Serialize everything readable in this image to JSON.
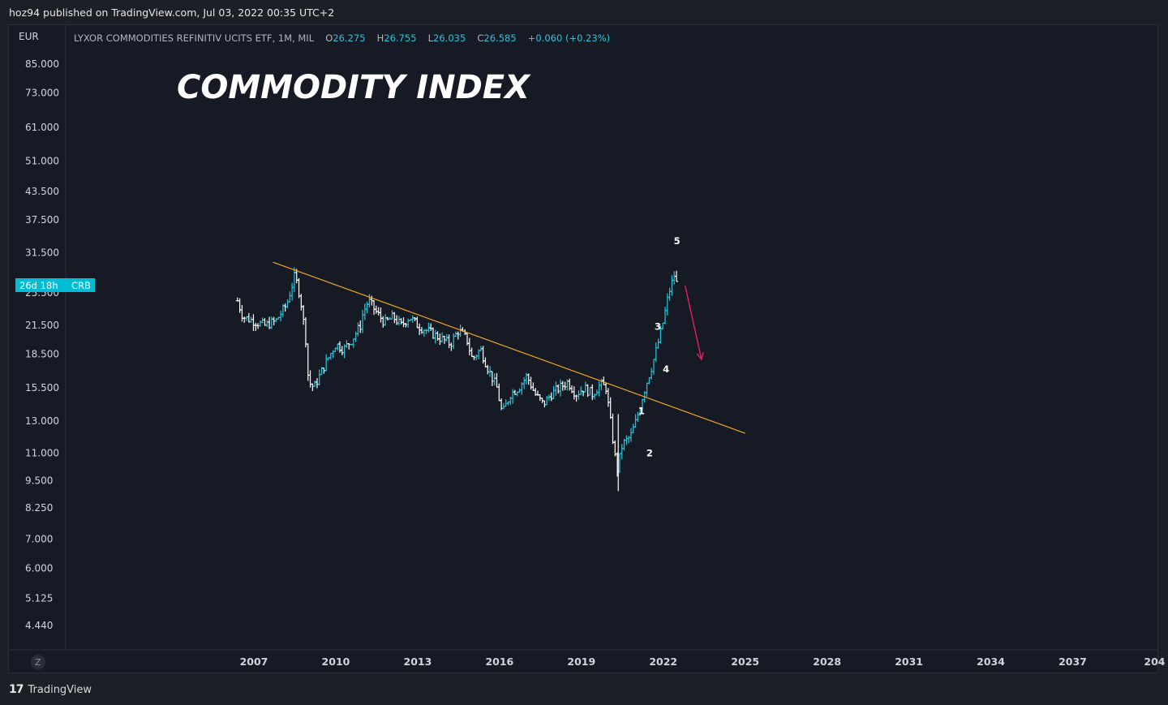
{
  "header": {
    "published_text": "hoz94 published on TradingView.com, Jul 03, 2022 00:35 UTC+2"
  },
  "legend": {
    "currency": "EUR",
    "symbol": "LYXOR COMMODITIES REFINITIV UCITS ETF, 1M, MIL",
    "open_label": "O",
    "open": "26.275",
    "high_label": "H",
    "high": "26.755",
    "low_label": "L",
    "low": "26.035",
    "close_label": "C",
    "close": "26.585",
    "change": "+0.060 (+0.23%)"
  },
  "badges": {
    "countdown": "26d 18h",
    "ticker": "CRB"
  },
  "axis_corner": "Z",
  "footer": {
    "brand": "TradingView"
  },
  "colors": {
    "background": "#161a25",
    "up_bar": "#26c6da",
    "down_bar": "#ffffff",
    "trendline": "#f5a623",
    "arrow": "#e91e63",
    "badge": "#00bcd4"
  },
  "chart_data": {
    "type": "line",
    "title": "COMMODITY INDEX",
    "scale": "log",
    "ylim": [
      4.0,
      95.0
    ],
    "y_ticks": [
      "85.000",
      "73.000",
      "61.000",
      "51.000",
      "43.500",
      "37.500",
      "31.500",
      "25.500",
      "21.500",
      "18.500",
      "15.500",
      "13.000",
      "11.000",
      "9.500",
      "8.250",
      "7.000",
      "6.000",
      "5.125",
      "4.440"
    ],
    "x_ticks": [
      "2007",
      "2010",
      "2013",
      "2016",
      "2019",
      "2022",
      "2025",
      "2028",
      "2031",
      "2034",
      "2037",
      "204"
    ],
    "series": [
      {
        "values": [
          [
            2006.4,
            24.5
          ],
          [
            2006.6,
            22.5
          ],
          [
            2007.0,
            22.0
          ],
          [
            2007.4,
            21.5
          ],
          [
            2007.8,
            22.0
          ],
          [
            2008.2,
            24.0
          ],
          [
            2008.5,
            28.0
          ],
          [
            2008.7,
            25.0
          ],
          [
            2008.9,
            20.0
          ],
          [
            2009.0,
            16.0
          ],
          [
            2009.2,
            15.5
          ],
          [
            2009.5,
            17.0
          ],
          [
            2009.8,
            18.5
          ],
          [
            2010.0,
            19.5
          ],
          [
            2010.3,
            19.0
          ],
          [
            2010.6,
            20.0
          ],
          [
            2010.9,
            21.5
          ],
          [
            2011.0,
            23.0
          ],
          [
            2011.2,
            24.5
          ],
          [
            2011.5,
            23.0
          ],
          [
            2011.8,
            21.8
          ],
          [
            2012.1,
            22.5
          ],
          [
            2012.4,
            21.5
          ],
          [
            2012.7,
            22.5
          ],
          [
            2013.0,
            21.5
          ],
          [
            2013.3,
            21.0
          ],
          [
            2013.6,
            20.5
          ],
          [
            2013.9,
            20.0
          ],
          [
            2014.2,
            19.5
          ],
          [
            2014.5,
            21.0
          ],
          [
            2014.8,
            20.0
          ],
          [
            2015.0,
            18.0
          ],
          [
            2015.3,
            19.0
          ],
          [
            2015.6,
            17.0
          ],
          [
            2015.9,
            15.5
          ],
          [
            2016.1,
            13.5
          ],
          [
            2016.4,
            15.0
          ],
          [
            2016.7,
            15.5
          ],
          [
            2017.0,
            16.5
          ],
          [
            2017.3,
            15.0
          ],
          [
            2017.6,
            14.2
          ],
          [
            2017.9,
            15.0
          ],
          [
            2018.2,
            15.5
          ],
          [
            2018.5,
            16.0
          ],
          [
            2018.8,
            15.0
          ],
          [
            2019.1,
            15.5
          ],
          [
            2019.4,
            15.0
          ],
          [
            2019.7,
            15.8
          ],
          [
            2019.9,
            15.5
          ],
          [
            2020.1,
            12.5
          ],
          [
            2020.3,
            10.0
          ],
          [
            2020.5,
            11.5
          ],
          [
            2020.8,
            12.0
          ],
          [
            2021.0,
            13.0
          ],
          [
            2021.2,
            14.5
          ],
          [
            2021.4,
            16.0
          ],
          [
            2021.6,
            17.5
          ],
          [
            2021.8,
            19.5
          ],
          [
            2022.0,
            22.0
          ],
          [
            2022.2,
            25.5
          ],
          [
            2022.4,
            28.0
          ],
          [
            2022.5,
            26.6
          ]
        ]
      }
    ],
    "annotations": {
      "wave_labels": [
        {
          "label": "1",
          "x": 2021.2,
          "y": 13.5
        },
        {
          "label": "2",
          "x": 2021.5,
          "y": 10.8
        },
        {
          "label": "3",
          "x": 2021.8,
          "y": 21.0
        },
        {
          "label": "4",
          "x": 2022.1,
          "y": 16.8
        },
        {
          "label": "5",
          "x": 2022.5,
          "y": 33.0
        }
      ],
      "trendline": {
        "from": [
          2007.7,
          30.0
        ],
        "to": [
          2025.0,
          12.2
        ]
      },
      "arrow": {
        "from": [
          2022.8,
          26.5
        ],
        "to": [
          2023.4,
          18.0
        ]
      }
    }
  }
}
